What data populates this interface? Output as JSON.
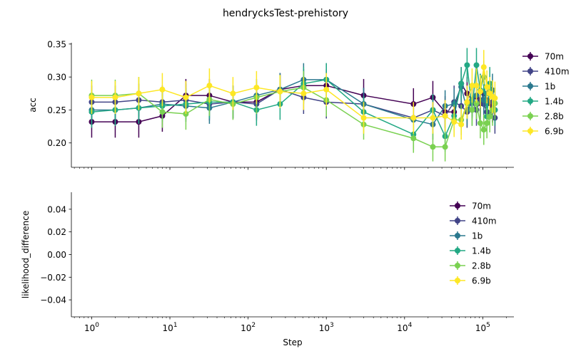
{
  "title": "hendrycksTest-prehistory",
  "chart_data": [
    {
      "type": "line",
      "title": "hendrycksTest-prehistory",
      "xlabel": "",
      "ylabel": "acc",
      "xscale": "log",
      "xlim": [
        0.55,
        250000
      ],
      "ylim": [
        0.163,
        0.352
      ],
      "yticks": [
        0.2,
        0.25,
        0.3,
        0.35
      ],
      "ytick_labels": [
        "0.20",
        "0.25",
        "0.30",
        "0.35"
      ],
      "legend": "right",
      "error_bars": true,
      "series": [
        {
          "name": "70m",
          "color": "#440154",
          "x": [
            1,
            2,
            4,
            8,
            16,
            32,
            64,
            128,
            256,
            512,
            1000,
            3000,
            13000,
            23000,
            33000,
            43000,
            53000,
            63000,
            73000,
            83000,
            93000,
            103000,
            113000,
            123000,
            133000,
            143000
          ],
          "y": [
            0.232,
            0.232,
            0.232,
            0.241,
            0.272,
            0.272,
            0.262,
            0.262,
            0.281,
            0.287,
            0.287,
            0.272,
            0.259,
            0.269,
            0.247,
            0.247,
            0.29,
            0.275,
            0.265,
            0.27,
            0.26,
            0.275,
            0.265,
            0.26,
            0.255,
            0.25
          ],
          "err": [
            0.024,
            0.024,
            0.024,
            0.024,
            0.025,
            0.025,
            0.025,
            0.025,
            0.025,
            0.025,
            0.025,
            0.025,
            0.024,
            0.025,
            0.024,
            0.024,
            0.025,
            0.025,
            0.025,
            0.025,
            0.025,
            0.025,
            0.025,
            0.025,
            0.024,
            0.024
          ]
        },
        {
          "name": "410m",
          "color": "#414487",
          "x": [
            1,
            2,
            4,
            8,
            16,
            32,
            64,
            128,
            256,
            512,
            1000,
            3000,
            13000,
            23000,
            33000,
            43000,
            53000,
            63000,
            73000,
            83000,
            93000,
            103000,
            113000,
            123000,
            133000,
            143000
          ],
          "y": [
            0.262,
            0.262,
            0.265,
            0.262,
            0.265,
            0.259,
            0.262,
            0.259,
            0.281,
            0.269,
            0.262,
            0.259,
            0.238,
            0.25,
            0.241,
            0.262,
            0.256,
            0.247,
            0.262,
            0.25,
            0.265,
            0.259,
            0.247,
            0.241,
            0.262,
            0.238
          ],
          "err": [
            0.025,
            0.025,
            0.025,
            0.025,
            0.025,
            0.025,
            0.025,
            0.025,
            0.025,
            0.025,
            0.025,
            0.025,
            0.024,
            0.024,
            0.024,
            0.025,
            0.024,
            0.024,
            0.025,
            0.024,
            0.025,
            0.025,
            0.024,
            0.024,
            0.025,
            0.024
          ]
        },
        {
          "name": "1b",
          "color": "#2a788e",
          "x": [
            1,
            2,
            4,
            8,
            16,
            32,
            64,
            128,
            256,
            512,
            1000,
            3000,
            13000,
            23000,
            33000,
            43000,
            53000,
            63000,
            73000,
            83000,
            93000,
            103000,
            113000,
            123000,
            133000,
            143000
          ],
          "y": [
            0.25,
            0.25,
            0.253,
            0.259,
            0.256,
            0.253,
            0.262,
            0.272,
            0.281,
            0.296,
            0.296,
            0.259,
            0.235,
            0.228,
            0.256,
            0.259,
            0.285,
            0.25,
            0.265,
            0.272,
            0.28,
            0.265,
            0.275,
            0.29,
            0.28,
            0.26
          ],
          "err": [
            0.024,
            0.024,
            0.024,
            0.024,
            0.024,
            0.024,
            0.025,
            0.025,
            0.025,
            0.025,
            0.025,
            0.024,
            0.024,
            0.023,
            0.024,
            0.024,
            0.025,
            0.024,
            0.025,
            0.025,
            0.025,
            0.025,
            0.025,
            0.025,
            0.025,
            0.024
          ]
        },
        {
          "name": "1.4b",
          "color": "#22a884",
          "x": [
            1,
            2,
            4,
            8,
            16,
            32,
            64,
            128,
            256,
            512,
            1000,
            3000,
            13000,
            23000,
            33000,
            43000,
            53000,
            63000,
            73000,
            83000,
            93000,
            103000,
            113000,
            123000,
            133000,
            143000
          ],
          "y": [
            0.247,
            0.25,
            0.253,
            0.256,
            0.259,
            0.262,
            0.262,
            0.25,
            0.259,
            0.29,
            0.296,
            0.247,
            0.213,
            0.25,
            0.21,
            0.241,
            0.29,
            0.318,
            0.25,
            0.318,
            0.28,
            0.3,
            0.24,
            0.29,
            0.27,
            0.25
          ],
          "err": [
            0.024,
            0.024,
            0.024,
            0.024,
            0.024,
            0.025,
            0.025,
            0.024,
            0.024,
            0.025,
            0.025,
            0.024,
            0.023,
            0.024,
            0.023,
            0.024,
            0.025,
            0.026,
            0.024,
            0.026,
            0.025,
            0.025,
            0.024,
            0.025,
            0.025,
            0.024
          ]
        },
        {
          "name": "2.8b",
          "color": "#7ad151",
          "x": [
            1,
            2,
            4,
            8,
            16,
            32,
            64,
            128,
            256,
            512,
            1000,
            3000,
            13000,
            23000,
            33000,
            43000,
            53000,
            63000,
            73000,
            83000,
            93000,
            103000,
            113000,
            123000,
            133000,
            143000
          ],
          "y": [
            0.272,
            0.272,
            0.275,
            0.247,
            0.244,
            0.266,
            0.259,
            0.269,
            0.278,
            0.284,
            0.265,
            0.228,
            0.207,
            0.194,
            0.194,
            0.235,
            0.235,
            0.26,
            0.25,
            0.26,
            0.23,
            0.22,
            0.23,
            0.24,
            0.25,
            0.26
          ],
          "err": [
            0.024,
            0.024,
            0.025,
            0.024,
            0.024,
            0.025,
            0.024,
            0.025,
            0.025,
            0.025,
            0.025,
            0.023,
            0.022,
            0.022,
            0.022,
            0.023,
            0.023,
            0.024,
            0.024,
            0.024,
            0.023,
            0.023,
            0.023,
            0.024,
            0.024,
            0.024
          ]
        },
        {
          "name": "6.9b",
          "color": "#fde725",
          "x": [
            1,
            2,
            4,
            8,
            16,
            32,
            64,
            128,
            256,
            512,
            1000,
            3000,
            13000,
            23000,
            33000,
            43000,
            53000,
            63000,
            73000,
            83000,
            93000,
            103000,
            113000,
            123000,
            133000,
            143000
          ],
          "y": [
            0.269,
            0.269,
            0.275,
            0.281,
            0.269,
            0.287,
            0.275,
            0.284,
            0.278,
            0.275,
            0.281,
            0.238,
            0.238,
            0.238,
            0.241,
            0.232,
            0.228,
            0.262,
            0.287,
            0.287,
            0.278,
            0.315,
            0.285,
            0.275,
            0.27,
            0.268
          ],
          "err": [
            0.025,
            0.025,
            0.025,
            0.025,
            0.025,
            0.026,
            0.025,
            0.025,
            0.025,
            0.025,
            0.025,
            0.024,
            0.024,
            0.024,
            0.024,
            0.023,
            0.023,
            0.025,
            0.026,
            0.026,
            0.025,
            0.026,
            0.025,
            0.025,
            0.025,
            0.025
          ]
        }
      ]
    },
    {
      "type": "line",
      "xlabel": "Step",
      "ylabel": "likelihood_difference",
      "xscale": "log",
      "xlim": [
        0.55,
        250000
      ],
      "ylim": [
        -0.055,
        0.055
      ],
      "yticks": [
        -0.04,
        -0.02,
        0.0,
        0.02,
        0.04
      ],
      "ytick_labels": [
        "−0.04",
        "−0.02",
        "0.00",
        "0.02",
        "0.04"
      ],
      "xticks": [
        1,
        10,
        100,
        1000,
        10000,
        100000
      ],
      "xtick_labels": [
        "10^0",
        "10^1",
        "10^2",
        "10^3",
        "10^4",
        "10^5"
      ],
      "legend": "upper right",
      "series": [
        {
          "name": "70m",
          "color": "#440154",
          "x": [],
          "y": []
        },
        {
          "name": "410m",
          "color": "#414487",
          "x": [],
          "y": []
        },
        {
          "name": "1b",
          "color": "#2a788e",
          "x": [],
          "y": []
        },
        {
          "name": "1.4b",
          "color": "#22a884",
          "x": [],
          "y": []
        },
        {
          "name": "2.8b",
          "color": "#7ad151",
          "x": [],
          "y": []
        },
        {
          "name": "6.9b",
          "color": "#fde725",
          "x": [],
          "y": []
        }
      ]
    }
  ]
}
